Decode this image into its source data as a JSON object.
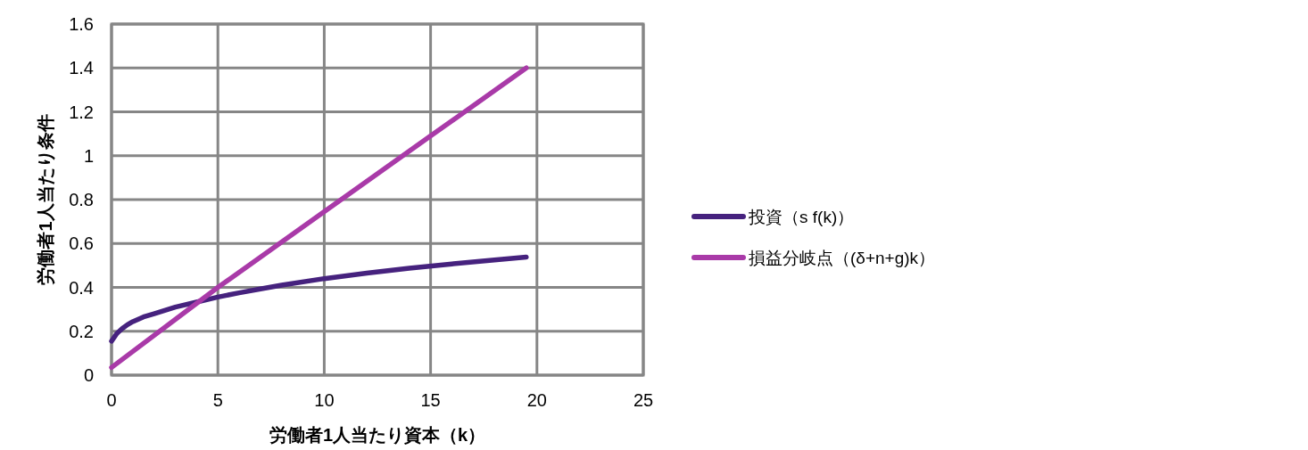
{
  "chart_data": {
    "type": "line",
    "xlabel": "労働者1人当たり資本（k）",
    "ylabel": "労働者1人当たり条件",
    "xlim": [
      0,
      25
    ],
    "ylim": [
      0,
      1.6
    ],
    "xticks": [
      0,
      5,
      10,
      15,
      20,
      25
    ],
    "yticks": [
      0,
      0.2,
      0.4,
      0.6,
      0.8,
      1,
      1.2,
      1.4,
      1.6
    ],
    "grid": true,
    "legend": "right",
    "series": [
      {
        "name": "投資（s f(k)）",
        "color": "#46227e",
        "x": [
          0,
          0.25,
          0.5,
          0.75,
          1,
          1.5,
          2,
          3,
          4,
          5,
          6,
          7,
          8,
          10,
          12,
          14,
          16,
          18,
          19.5
        ],
        "values": [
          0.155,
          0.19,
          0.212,
          0.23,
          0.244,
          0.265,
          0.28,
          0.31,
          0.333,
          0.356,
          0.375,
          0.393,
          0.41,
          0.44,
          0.465,
          0.487,
          0.507,
          0.525,
          0.538
        ]
      },
      {
        "name": "損益分岐点（(δ+n+g)k）",
        "color": "#a93aa8",
        "x": [
          0,
          5,
          10,
          15,
          19.5
        ],
        "values": [
          0.035,
          0.4,
          0.745,
          1.09,
          1.4
        ]
      }
    ]
  }
}
